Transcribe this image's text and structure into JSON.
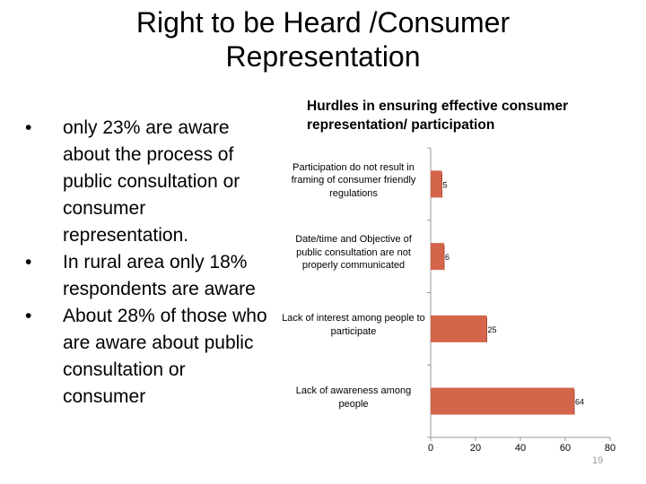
{
  "slide": {
    "title_lines": [
      "Right to be Heard /Consumer",
      "Representation"
    ],
    "bullet_symbol": "•",
    "bullets": [
      "only 23% are aware about the process of public consultation or consumer representation.",
      "In rural area only 18% respondents are aware",
      "About 28% of those who are aware about public consultation or consumer"
    ],
    "page_number": "19"
  },
  "chart_data": {
    "type": "bar",
    "orientation": "horizontal",
    "title": "Hurdles in ensuring effective consumer representation/ participation",
    "categories": [
      "Participation do not result in framing of consumer friendly regulations",
      "Date/time and Objective of public consultation are not properly communicated",
      "Lack of interest among people to participate",
      "Lack of awareness among people"
    ],
    "values": [
      5,
      6,
      25,
      64
    ],
    "data_labels": [
      "5",
      "6",
      "25",
      "64"
    ],
    "xlim": [
      0,
      80
    ],
    "x_ticks": [
      "0",
      "20",
      "40",
      "60",
      "80"
    ],
    "bar_color": "#d4654b",
    "grid": false,
    "legend": "none"
  }
}
